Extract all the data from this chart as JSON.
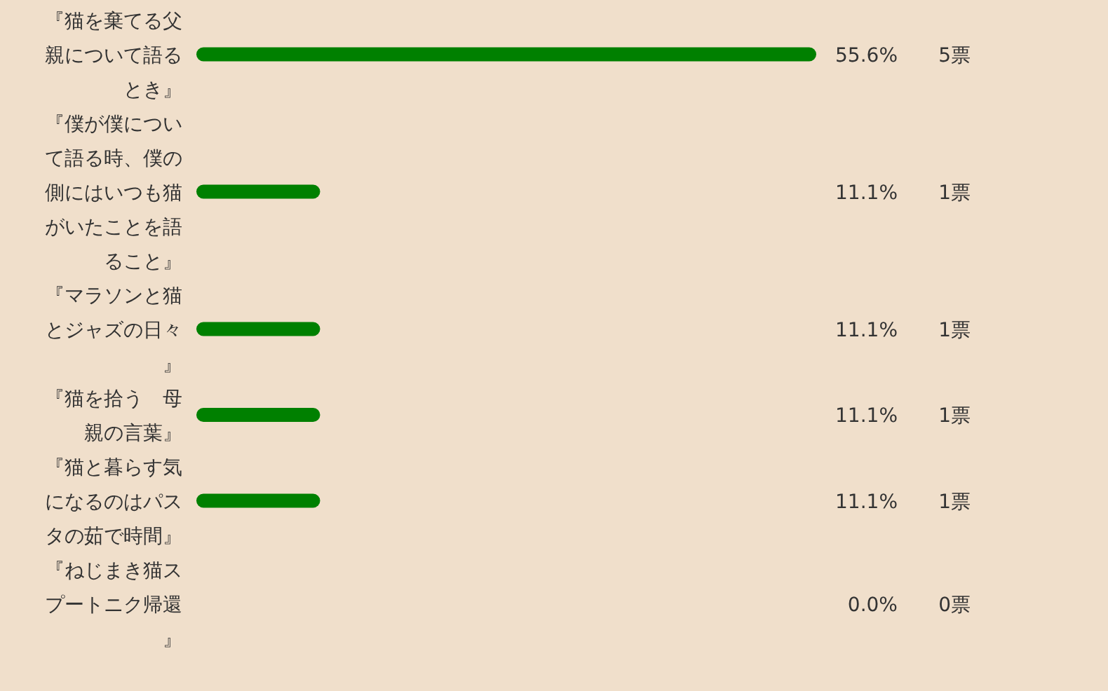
{
  "chart_data": {
    "type": "bar",
    "orientation": "horizontal",
    "categories": [
      "『猫を棄てる父親について語るとき』",
      "『僕が僕について語る時、僕の側にはいつも猫がいたことを語ること』",
      "『マラソンと猫とジャズの日々』",
      "『猫を拾う　母親の言葉』",
      "『猫と暮らす気になるのはパスタの茹で時間』",
      "『ねじまき猫スプートニク帰還』"
    ],
    "values": [
      55.6,
      11.1,
      11.1,
      11.1,
      11.1,
      0.0
    ],
    "value_labels": [
      "55.6%",
      "11.1%",
      "11.1%",
      "11.1%",
      "11.1%",
      "0.0%"
    ],
    "annotations": [
      "5票",
      "1票",
      "1票",
      "1票",
      "1票",
      "0票"
    ],
    "color": "#008000"
  }
}
